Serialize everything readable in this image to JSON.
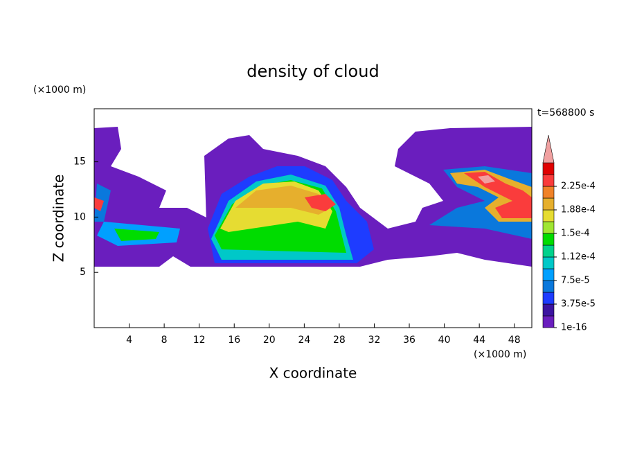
{
  "chart_data": {
    "type": "contour",
    "title": "density of cloud",
    "x_label": "X coordinate",
    "y_label": "Z coordinate",
    "x_unit": "(×1000 m)",
    "y_unit": "(×1000 m)",
    "time_label": "t=568800 s",
    "xlim": [
      0,
      50
    ],
    "xticks": [
      4,
      8,
      12,
      16,
      20,
      24,
      28,
      32,
      36,
      40,
      44,
      48
    ],
    "ylim": [
      0,
      19.8
    ],
    "yticks": [
      5,
      10,
      15
    ],
    "colorbar": {
      "levels": [
        1e-16,
        1.875e-05,
        3.75e-05,
        5.625e-05,
        7.5e-05,
        9.375e-05,
        0.000112,
        0.00013125,
        0.00015,
        0.00016875,
        0.000188,
        0.00020625,
        0.000225,
        0.00024375
      ],
      "colors": [
        "#6a1ebe",
        "#3c14a0",
        "#1e3cff",
        "#0a78dc",
        "#00a0ff",
        "#00c8c8",
        "#00d28c",
        "#00dc00",
        "#a0e632",
        "#e6dc32",
        "#e6af2d",
        "#f08228",
        "#fa3c3c",
        "#e00000"
      ],
      "over_color": "#f0a0a0",
      "ticks": [
        {
          "value": 1e-16,
          "label": "1e-16"
        },
        {
          "value": 3.75e-05,
          "label": "3.75e-5"
        },
        {
          "value": 7.5e-05,
          "label": "7.5e-5"
        },
        {
          "value": 0.000112,
          "label": "1.12e-4"
        },
        {
          "value": 0.00015,
          "label": "1.5e-4"
        },
        {
          "value": 0.000188,
          "label": "1.88e-4"
        },
        {
          "value": 0.000225,
          "label": "2.25e-4"
        }
      ]
    }
  }
}
